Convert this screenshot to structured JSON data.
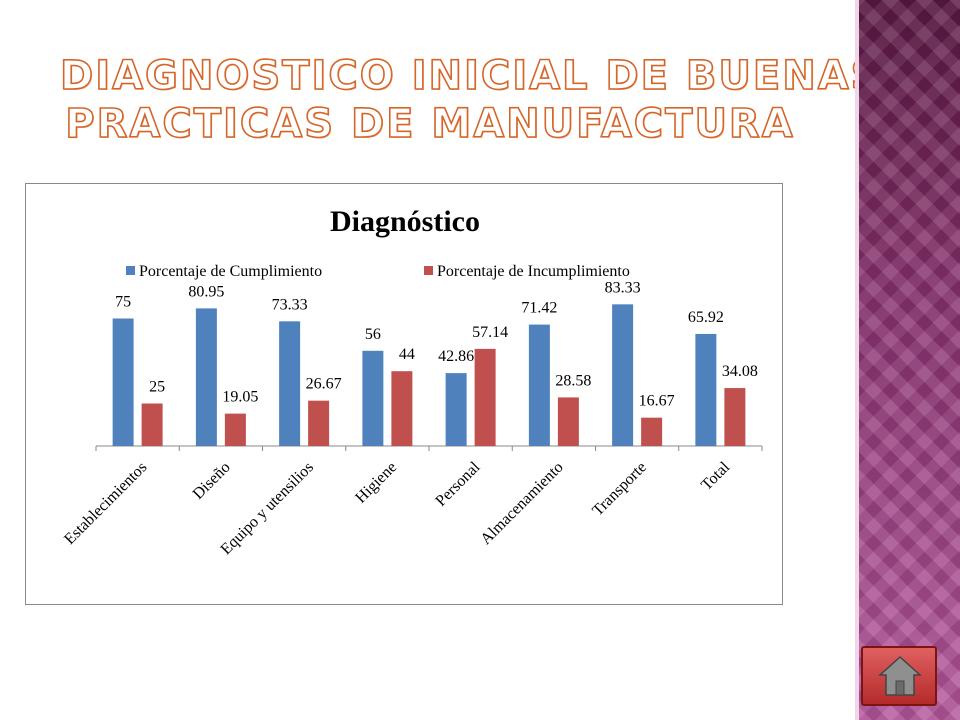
{
  "slide": {
    "title_line1": "DIAGNOSTICO INICIAL DE BUENAS",
    "title_line2": "PRACTICAS DE MANUFACTURA",
    "home_icon": "home-icon"
  },
  "chart_data": {
    "type": "bar",
    "title": "Diagnóstico",
    "categories": [
      "Establecimientos",
      "Diseño",
      "Equipo y utensilios",
      "Higiene",
      "Personal",
      "Almacenamiento",
      "Transporte",
      "Total"
    ],
    "series": [
      {
        "name": "Porcentaje de Cumplimiento",
        "color": "#4f81bd",
        "values": [
          75,
          80.95,
          73.33,
          56,
          42.86,
          71.42,
          83.33,
          65.92
        ]
      },
      {
        "name": "Porcentaje de Incumplimiento",
        "color": "#c0504d",
        "values": [
          25,
          19.05,
          26.67,
          44,
          57.14,
          28.58,
          16.67,
          34.08
        ]
      }
    ],
    "ylim": [
      0,
      100
    ],
    "legend": "top",
    "grid": false,
    "data_labels": true
  },
  "colors": {
    "title_outline": "#d5662a",
    "panel": "#86306c",
    "home_button": "#c0392b"
  }
}
